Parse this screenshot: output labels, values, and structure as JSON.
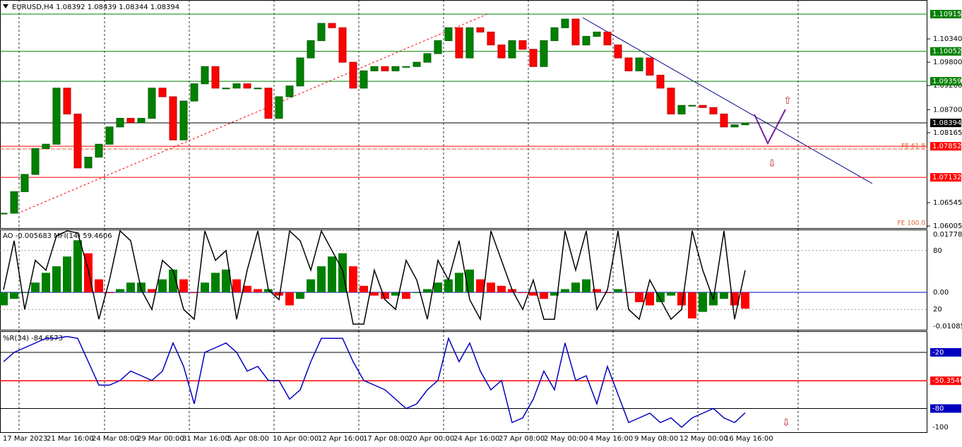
{
  "header": {
    "symbol_info": "EURUSD,H4  1.08392 1.08439 1.08344 1.08394"
  },
  "price_scale": [
    "1.10340",
    "1.09800",
    "1.09260",
    "1.08700",
    "1.08165",
    "1.06545",
    "1.06005"
  ],
  "level_labels": [
    {
      "text": "1.10915",
      "color": "#008000"
    },
    {
      "text": "1.10052",
      "color": "#008000"
    },
    {
      "text": "1.09359",
      "color": "#008000"
    },
    {
      "text": "1.08394",
      "color": "#000000"
    },
    {
      "text": "1.07852",
      "color": "#ff0000"
    },
    {
      "text": "1.07132",
      "color": "#ff0000"
    }
  ],
  "fibo_labels": [
    "FE 61.8",
    "FE 100.0"
  ],
  "closes": [
    1.063,
    1.068,
    1.072,
    1.078,
    1.079,
    1.092,
    1.086,
    1.0735,
    1.076,
    1.079,
    1.083,
    1.085,
    1.084,
    1.085,
    1.092,
    1.09,
    1.08,
    1.089,
    1.093,
    1.097,
    1.092,
    1.092,
    1.093,
    1.092,
    1.092,
    1.085,
    1.09,
    1.0925,
    1.099,
    1.103,
    1.107,
    1.106,
    1.098,
    1.092,
    1.096,
    1.097,
    1.096,
    1.097,
    1.097,
    1.098,
    1.1,
    1.103,
    1.106,
    1.099,
    1.106,
    1.105,
    1.102,
    1.099,
    1.103,
    1.101,
    1.097,
    1.103,
    1.106,
    1.108,
    1.102,
    1.104,
    1.105,
    1.102,
    1.099,
    1.096,
    1.099,
    1.095,
    1.092,
    1.086,
    1.088,
    1.088,
    1.0875,
    1.086,
    1.083,
    1.0835,
    1.08394
  ],
  "indicator1": {
    "label": "AO -0.005683  MFI(14) 59.4606",
    "scale": [
      "0.017781",
      "80",
      "0.00",
      "20",
      "-0.010854"
    ],
    "ao": [
      -0.004,
      -0.002,
      0.0,
      0.003,
      0.006,
      0.008,
      0.011,
      0.016,
      0.012,
      0.004,
      0.0,
      0.001,
      0.003,
      0.003,
      0.001,
      0.004,
      0.007,
      0.004,
      0.0,
      0.003,
      0.006,
      0.007,
      0.004,
      0.002,
      0.001,
      0.001,
      -0.001,
      -0.004,
      -0.002,
      0.004,
      0.008,
      0.011,
      0.012,
      0.008,
      0.002,
      -0.001,
      -0.002,
      -0.001,
      -0.002,
      0.0,
      0.001,
      0.003,
      0.004,
      0.006,
      0.007,
      0.004,
      0.003,
      0.002,
      0.001,
      0.0,
      -0.001,
      -0.002,
      -0.001,
      0.001,
      0.003,
      0.004,
      0.001,
      0.0,
      0.001,
      0.0,
      -0.003,
      -0.004,
      -0.003,
      -0.001,
      -0.004,
      -0.008,
      -0.006,
      -0.004,
      -0.002,
      -0.004,
      -0.005
    ],
    "mfi": [
      40,
      90,
      20,
      70,
      60,
      95,
      100,
      98,
      60,
      10,
      50,
      100,
      90,
      40,
      20,
      70,
      60,
      20,
      10,
      100,
      70,
      80,
      10,
      60,
      100,
      40,
      30,
      100,
      90,
      60,
      100,
      80,
      60,
      5,
      5,
      60,
      30,
      20,
      70,
      50,
      10,
      70,
      50,
      90,
      30,
      10,
      100,
      70,
      40,
      20,
      50,
      10,
      10,
      100,
      60,
      100,
      20,
      40,
      100,
      20,
      10,
      50,
      30,
      10,
      20,
      100,
      60,
      30,
      100,
      10,
      60
    ]
  },
  "indicator2": {
    "label": "%R(34) -84.6573",
    "scale": [
      {
        "text": "-20",
        "box": "#0000c0"
      },
      {
        "text": "-50.3546",
        "box": "#ff0000"
      },
      {
        "text": "-80",
        "box": "#0000c0"
      },
      {
        "text": "-100",
        "box": null
      }
    ],
    "wpr": [
      -30,
      -20,
      -15,
      -10,
      -5,
      -5,
      -3,
      -5,
      -30,
      -55,
      -55,
      -50,
      -40,
      -45,
      -50,
      -40,
      -10,
      -35,
      -75,
      -20,
      -15,
      -10,
      -20,
      -40,
      -35,
      -50,
      -50,
      -70,
      -60,
      -30,
      -5,
      -5,
      -5,
      -30,
      -50,
      -55,
      -60,
      -70,
      -80,
      -75,
      -60,
      -50,
      -5,
      -30,
      -10,
      -40,
      -60,
      -50,
      -95,
      -90,
      -70,
      -40,
      -60,
      -10,
      -50,
      -45,
      -75,
      -35,
      -65,
      -95,
      -90,
      -85,
      -95,
      -90,
      -100,
      -90,
      -85,
      -80,
      -90,
      -95,
      -84.6
    ]
  },
  "time_axis": [
    "17 Mar 2023",
    "21 Mar 16:00",
    "24 Mar 08:00",
    "29 Mar 00:00",
    "31 Mar 16:00",
    "5 Apr 08:00",
    "10 Apr 00:00",
    "12 Apr 16:00",
    "17 Apr 08:00",
    "20 Apr 00:00",
    "24 Apr 16:00",
    "27 Apr 08:00",
    "2 May 00:00",
    "4 May 16:00",
    "9 May 08:00",
    "12 May 00:00",
    "16 May 16:00"
  ]
}
